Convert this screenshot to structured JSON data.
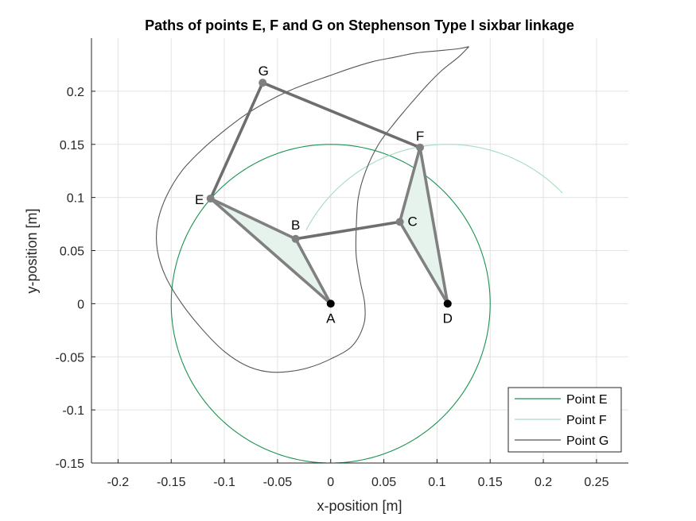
{
  "chart_data": {
    "type": "line",
    "title": "Paths of points E, F and G on Stephenson Type I sixbar linkage",
    "xlabel": "x-position [m]",
    "ylabel": "y-position [m]",
    "xlim": [
      -0.225,
      0.28
    ],
    "ylim": [
      -0.15,
      0.25
    ],
    "xticks": [
      -0.2,
      -0.15,
      -0.1,
      -0.05,
      0,
      0.05,
      0.1,
      0.15,
      0.2,
      0.25
    ],
    "xtick_labels": [
      "-0.2",
      "-0.15",
      "-0.1",
      "-0.05",
      "0",
      "0.05",
      "0.1",
      "0.15",
      "0.2",
      "0.25"
    ],
    "yticks": [
      -0.15,
      -0.1,
      -0.05,
      0,
      0.05,
      0.1,
      0.15,
      0.2
    ],
    "ytick_labels": [
      "-0.15",
      "-0.1",
      "-0.05",
      "0",
      "0.05",
      "0.1",
      "0.15",
      "0.2"
    ],
    "grid": true,
    "legend_position": "bottom-right",
    "series": [
      {
        "name": "Point E",
        "color": "#1a9350",
        "circle": {
          "cx": 0,
          "cy": 0,
          "r": 0.15
        }
      },
      {
        "name": "Point F",
        "color": "#a6dcbf",
        "arc": {
          "cx": 0.11,
          "cy": 0,
          "r": 0.15,
          "theta_start_deg": 152.5,
          "theta_end_deg": 44
        }
      },
      {
        "name": "Point G",
        "color": "#555555",
        "points": [
          [
            0.13,
            0.242
          ],
          [
            0.12,
            0.24
          ],
          [
            0.1,
            0.238
          ],
          [
            0.08,
            0.236
          ],
          [
            0.06,
            0.232
          ],
          [
            0.04,
            0.228
          ],
          [
            0.02,
            0.222
          ],
          [
            0.0,
            0.215
          ],
          [
            -0.02,
            0.208
          ],
          [
            -0.04,
            0.2
          ],
          [
            -0.06,
            0.19
          ],
          [
            -0.08,
            0.178
          ],
          [
            -0.1,
            0.163
          ],
          [
            -0.12,
            0.146
          ],
          [
            -0.14,
            0.125
          ],
          [
            -0.155,
            0.1
          ],
          [
            -0.163,
            0.075
          ],
          [
            -0.163,
            0.05
          ],
          [
            -0.155,
            0.025
          ],
          [
            -0.14,
            0.0
          ],
          [
            -0.12,
            -0.025
          ],
          [
            -0.1,
            -0.045
          ],
          [
            -0.08,
            -0.058
          ],
          [
            -0.06,
            -0.064
          ],
          [
            -0.04,
            -0.064
          ],
          [
            -0.02,
            -0.06
          ],
          [
            0.0,
            -0.052
          ],
          [
            0.02,
            -0.04
          ],
          [
            0.031,
            -0.02
          ],
          [
            0.032,
            0.0
          ],
          [
            0.028,
            0.02
          ],
          [
            0.024,
            0.045
          ],
          [
            0.024,
            0.07
          ],
          [
            0.026,
            0.1
          ],
          [
            0.033,
            0.125
          ],
          [
            0.045,
            0.15
          ],
          [
            0.06,
            0.17
          ],
          [
            0.075,
            0.188
          ],
          [
            0.09,
            0.205
          ],
          [
            0.105,
            0.22
          ],
          [
            0.12,
            0.232
          ],
          [
            0.13,
            0.242
          ]
        ]
      }
    ],
    "linkage": {
      "color": "#808080",
      "color_dark": "#6e6e6e",
      "triangle_fill": "#e6f3ec",
      "points": {
        "A": [
          0,
          0
        ],
        "B": [
          -0.033,
          0.061
        ],
        "C": [
          0.065,
          0.077
        ],
        "D": [
          0.11,
          0
        ],
        "E": [
          -0.113,
          0.099
        ],
        "F": [
          0.084,
          0.147
        ],
        "G": [
          -0.064,
          0.208
        ]
      },
      "ground_points": [
        "A",
        "D"
      ],
      "triangles": [
        [
          "A",
          "B",
          "E"
        ],
        [
          "C",
          "D",
          "F"
        ]
      ],
      "links": [
        [
          "A",
          "B"
        ],
        [
          "B",
          "E"
        ],
        [
          "E",
          "A"
        ],
        [
          "B",
          "C"
        ],
        [
          "C",
          "D"
        ],
        [
          "D",
          "F"
        ],
        [
          "F",
          "C"
        ],
        [
          "E",
          "G"
        ],
        [
          "G",
          "F"
        ]
      ]
    }
  }
}
